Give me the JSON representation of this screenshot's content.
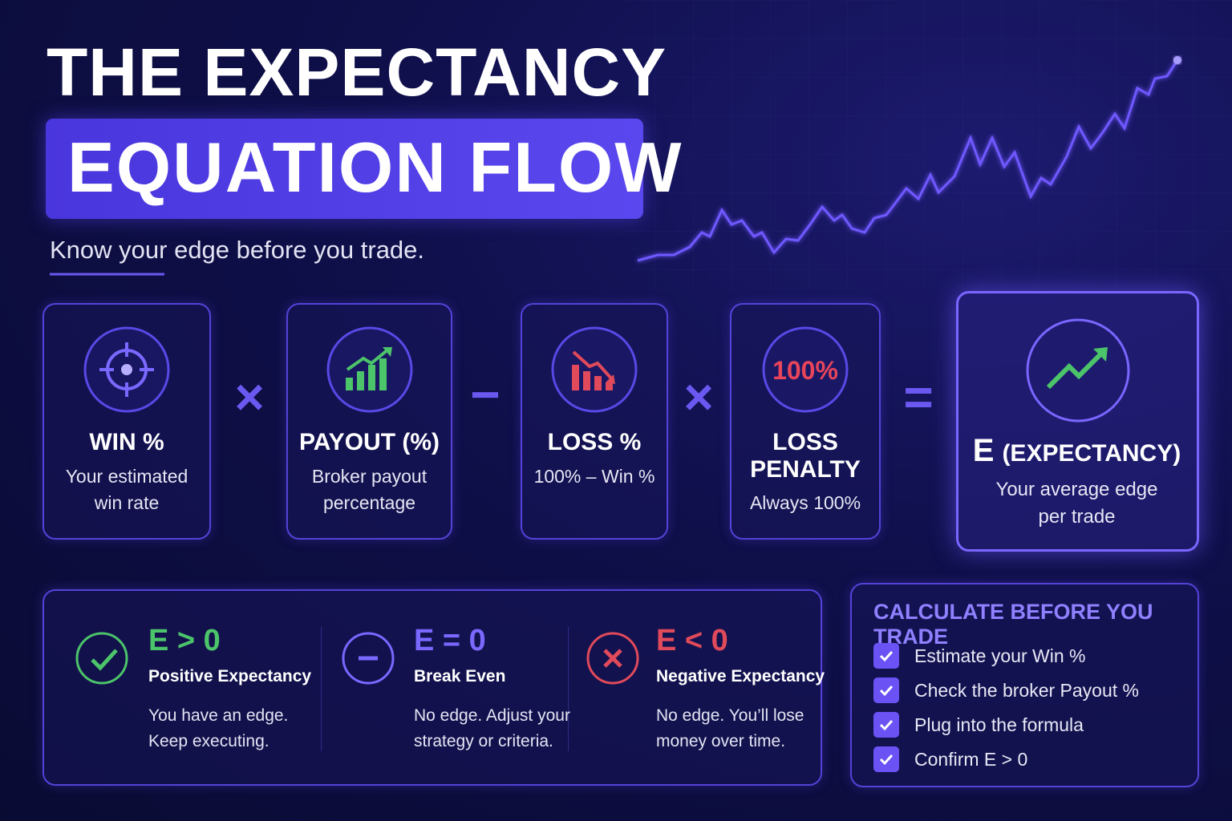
{
  "header": {
    "title_line1": "THE EXPECTANCY",
    "title_line2": "EQUATION FLOW",
    "subtitle": "Know your edge before you trade."
  },
  "equation": {
    "terms": [
      {
        "title": "WIN %",
        "desc": [
          "Your estimated",
          "win rate"
        ]
      },
      {
        "title": "PAYOUT (%)",
        "desc": [
          "Broker payout",
          "percentage"
        ]
      },
      {
        "title": "LOSS %",
        "desc": [
          "100% – Win %"
        ]
      },
      {
        "title": [
          "LOSS",
          "PENALTY"
        ],
        "icon_text": "100%",
        "desc": [
          "Always 100%"
        ]
      }
    ],
    "operators": [
      "×",
      "−",
      "×",
      "="
    ],
    "result": {
      "symbol": "E",
      "title": "(EXPECTANCY)",
      "desc": [
        "Your average edge",
        "per trade"
      ]
    }
  },
  "outcomes": [
    {
      "label": "E > 0",
      "title": "Positive Expectancy",
      "desc": [
        "You have an edge.",
        "Keep executing."
      ]
    },
    {
      "label": "E = 0",
      "title": "Break Even",
      "desc": [
        "No edge. Adjust your",
        "strategy or criteria."
      ]
    },
    {
      "label": "E < 0",
      "title": "Negative Expectancy",
      "desc": [
        "No edge. You’ll lose",
        "money over time."
      ]
    }
  ],
  "checklist": {
    "title": "CALCULATE BEFORE YOU TRADE",
    "items": [
      "Estimate your Win %",
      "Check the broker Payout %",
      "Plug into the formula",
      "Confirm E > 0"
    ]
  }
}
